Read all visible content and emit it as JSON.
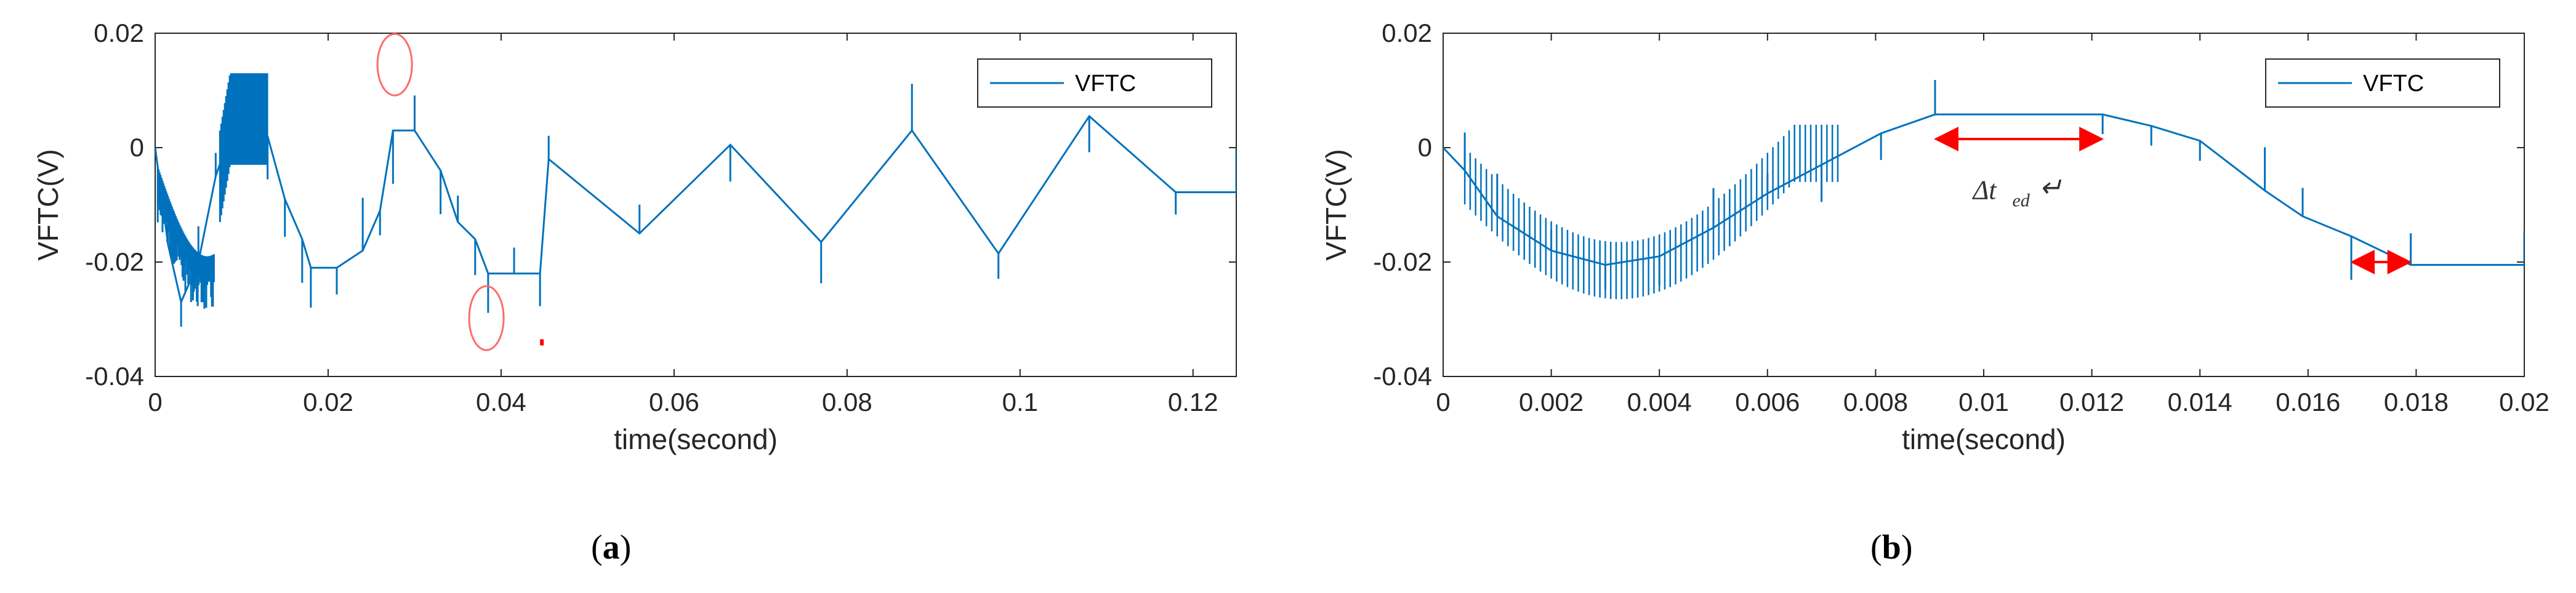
{
  "panels": [
    {
      "id": "a",
      "label": "(a)",
      "label_letter": "a",
      "chart_data": {
        "type": "line",
        "title": "",
        "xlabel": "time(second)",
        "ylabel": "VFTC(V)",
        "xlim": [
          0,
          0.125
        ],
        "ylim": [
          -0.04,
          0.02
        ],
        "xticks": [
          0,
          0.02,
          0.04,
          0.06,
          0.08,
          0.1,
          0.12
        ],
        "xtick_labels": [
          "0",
          "0.02",
          "0.04",
          "0.06",
          "0.08",
          "0.1",
          "0.12"
        ],
        "yticks": [
          -0.04,
          -0.02,
          0,
          0.02
        ],
        "ytick_labels": [
          "-0.04",
          "-0.02",
          "0",
          "0.02"
        ],
        "grid": false,
        "legend": {
          "position": "top-right",
          "entries": [
            "VFTC"
          ]
        },
        "line_color": "#0072BD",
        "series": [
          {
            "name": "VFTC",
            "x": [
              0,
              0.0015,
              0.003,
              0.005,
              0.007,
              0.0095,
              0.011,
              0.013,
              0.015,
              0.017,
              0.018,
              0.021,
              0.024,
              0.026,
              0.0275,
              0.03,
              0.033,
              0.035,
              0.037,
              0.0385,
              0.0415,
              0.0445,
              0.0455,
              0.056,
              0.0665,
              0.077,
              0.0875,
              0.0975,
              0.108,
              0.118,
              0.125
            ],
            "values": [
              0,
              -0.017,
              -0.027,
              -0.02,
              -0.005,
              0.006,
              0.006,
              0.002,
              -0.009,
              -0.016,
              -0.021,
              -0.021,
              -0.018,
              -0.011,
              0.003,
              0.003,
              -0.004,
              -0.013,
              -0.016,
              -0.022,
              -0.022,
              -0.022,
              -0.002,
              -0.015,
              0.0005,
              -0.0165,
              0.003,
              -0.0185,
              0.0055,
              -0.0078,
              -0.0078
            ]
          }
        ],
        "annotations": [
          "red ellipse at spike near t=0.028",
          "red ellipse at spike near t=0.038"
        ]
      }
    },
    {
      "id": "b",
      "label": "(b)",
      "label_letter": "b",
      "chart_data": {
        "type": "line",
        "title": "",
        "xlabel": "time(second)",
        "ylabel": "VFTC(V)",
        "xlim": [
          0,
          0.02
        ],
        "ylim": [
          -0.04,
          0.02
        ],
        "xticks": [
          0,
          0.002,
          0.004,
          0.006,
          0.008,
          0.01,
          0.012,
          0.014,
          0.016,
          0.018,
          0.02
        ],
        "xtick_labels": [
          "0",
          "0.002",
          "0.004",
          "0.006",
          "0.008",
          "0.01",
          "0.012",
          "0.014",
          "0.016",
          "0.018",
          "0.02"
        ],
        "yticks": [
          -0.04,
          -0.02,
          0,
          0.02
        ],
        "ytick_labels": [
          "-0.04",
          "-0.02",
          "0",
          "0.02"
        ],
        "grid": false,
        "legend": {
          "position": "top-right",
          "entries": [
            "VFTC"
          ]
        },
        "line_color": "#0072BD",
        "series": [
          {
            "name": "VFTC",
            "x": [
              0,
              0.0004,
              0.001,
              0.002,
              0.003,
              0.004,
              0.005,
              0.006,
              0.007,
              0.0081,
              0.0091,
              0.0122,
              0.0131,
              0.014,
              0.0152,
              0.0159,
              0.0168,
              0.0179,
              0.02
            ],
            "values": [
              0,
              -0.004,
              -0.012,
              -0.018,
              -0.0205,
              -0.019,
              -0.014,
              -0.008,
              -0.003,
              0.0025,
              0.0058,
              0.0058,
              0.0038,
              0.0012,
              -0.0075,
              -0.012,
              -0.0155,
              -0.0205,
              -0.0205
            ]
          }
        ],
        "annotations": [
          {
            "type": "double-arrow",
            "color": "#FF0000",
            "x_start": 0.0091,
            "x_end": 0.0122,
            "y": 0.0015
          },
          {
            "type": "double-arrow",
            "color": "#FF0000",
            "x_start": 0.0168,
            "x_end": 0.0179,
            "y": -0.02
          },
          {
            "type": "text",
            "text": "Δt",
            "subscript": "ed",
            "x": 0.0098,
            "y": -0.009
          }
        ]
      }
    }
  ]
}
